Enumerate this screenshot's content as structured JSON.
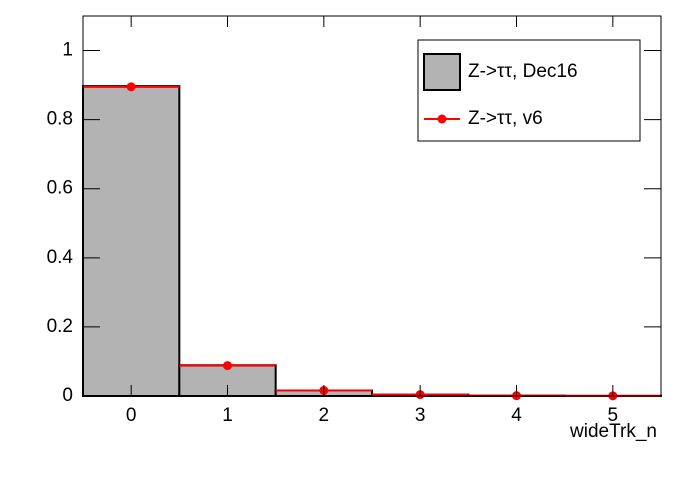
{
  "chart_data": {
    "type": "histogram",
    "x_label": "wideTrk_n",
    "bins": [
      -0.5,
      0.5,
      1.5,
      2.5,
      3.5,
      4.5,
      5.5
    ],
    "series": [
      {
        "name": "Z->ττ, Dec16",
        "style": "filled",
        "color": "#b3b3b3",
        "values": [
          0.897,
          0.089,
          0.016,
          0.004,
          0.001,
          0.0005
        ]
      },
      {
        "name": "Z->ττ, v6",
        "style": "markers",
        "color": "#ff0000",
        "values": [
          0.895,
          0.088,
          0.016,
          0.004,
          0.001,
          0.0005
        ]
      }
    ],
    "xlim": [
      -0.5,
      5.5
    ],
    "ylim": [
      0,
      1.1
    ],
    "xticks": [
      0,
      1,
      2,
      3,
      4,
      5
    ],
    "yticks": [
      0,
      0.2,
      0.4,
      0.6,
      0.8,
      1
    ]
  }
}
